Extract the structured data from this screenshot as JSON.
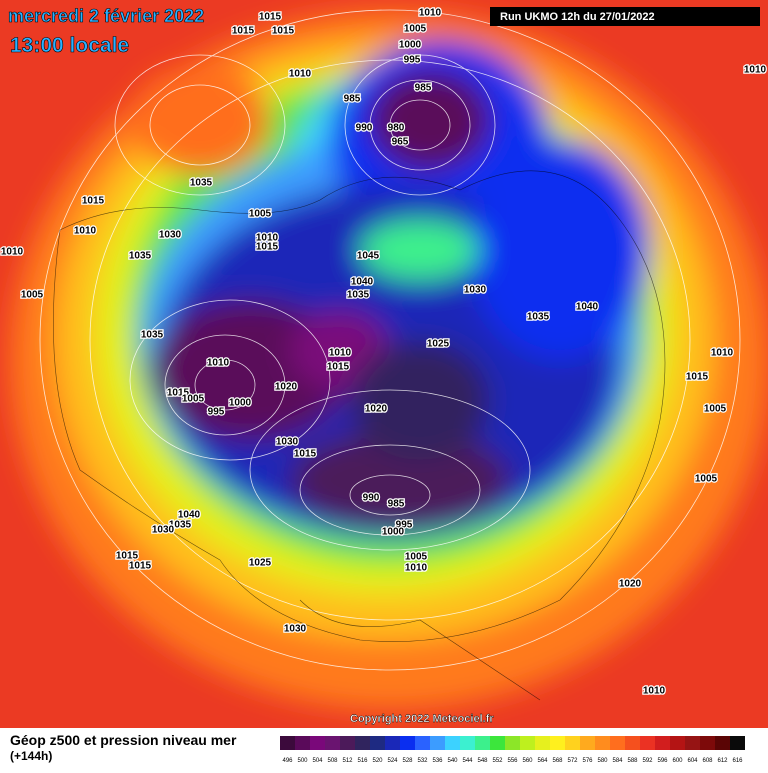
{
  "header": {
    "date": "mercredi 2 février 2022",
    "time": "13:00 locale",
    "run": "Run UKMO 12h du 27/01/2022"
  },
  "copyright": "Copyright 2022 Meteociel.fr",
  "footer": {
    "title": "Géop z500 et pression niveau mer",
    "lead": "(+144h)"
  },
  "color_scale": {
    "labels": [
      "496",
      "500",
      "504",
      "508",
      "512",
      "516",
      "520",
      "524",
      "528",
      "532",
      "536",
      "540",
      "544",
      "548",
      "552",
      "556",
      "560",
      "564",
      "568",
      "572",
      "576",
      "580",
      "584",
      "588",
      "592",
      "596",
      "600",
      "604",
      "608",
      "612",
      "616"
    ],
    "colors": [
      "#3c0a3c",
      "#5a0a5a",
      "#7a087a",
      "#6a1470",
      "#4c1a5a",
      "#30245e",
      "#1e2a82",
      "#1a28b8",
      "#0a2ef0",
      "#2a62ff",
      "#3c9cff",
      "#3cd2ff",
      "#3cf0d0",
      "#3cf08c",
      "#3ce63c",
      "#8ce628",
      "#bef01e",
      "#e6f01e",
      "#fff01e",
      "#ffd21e",
      "#ffaa1e",
      "#ff8c1e",
      "#ff6e1e",
      "#f5501e",
      "#eb3223",
      "#d21e1e",
      "#b41414",
      "#961414",
      "#7d0a0a",
      "#5a0505",
      "#0a0a0a"
    ]
  },
  "isobar_labels": [
    "1015",
    "1015",
    "1015",
    "1010",
    "1005",
    "1000",
    "995",
    "985",
    "985",
    "990",
    "980",
    "965",
    "1010",
    "1035",
    "1015",
    "1010",
    "1030",
    "1005",
    "1010",
    "1015",
    "1035",
    "1045",
    "1040",
    "1035",
    "1030",
    "1035",
    "1040",
    "1010",
    "1005",
    "1035",
    "1025",
    "1010",
    "1015",
    "1010",
    "1015",
    "1005",
    "1000",
    "995",
    "1020",
    "1020",
    "1030",
    "1015",
    "990",
    "985",
    "995",
    "1000",
    "1005",
    "1010",
    "1040",
    "1035",
    "1030",
    "1015",
    "1015",
    "1025",
    "1030",
    "1020",
    "1005",
    "1005",
    "1015",
    "1010",
    "1010",
    "1010"
  ]
}
